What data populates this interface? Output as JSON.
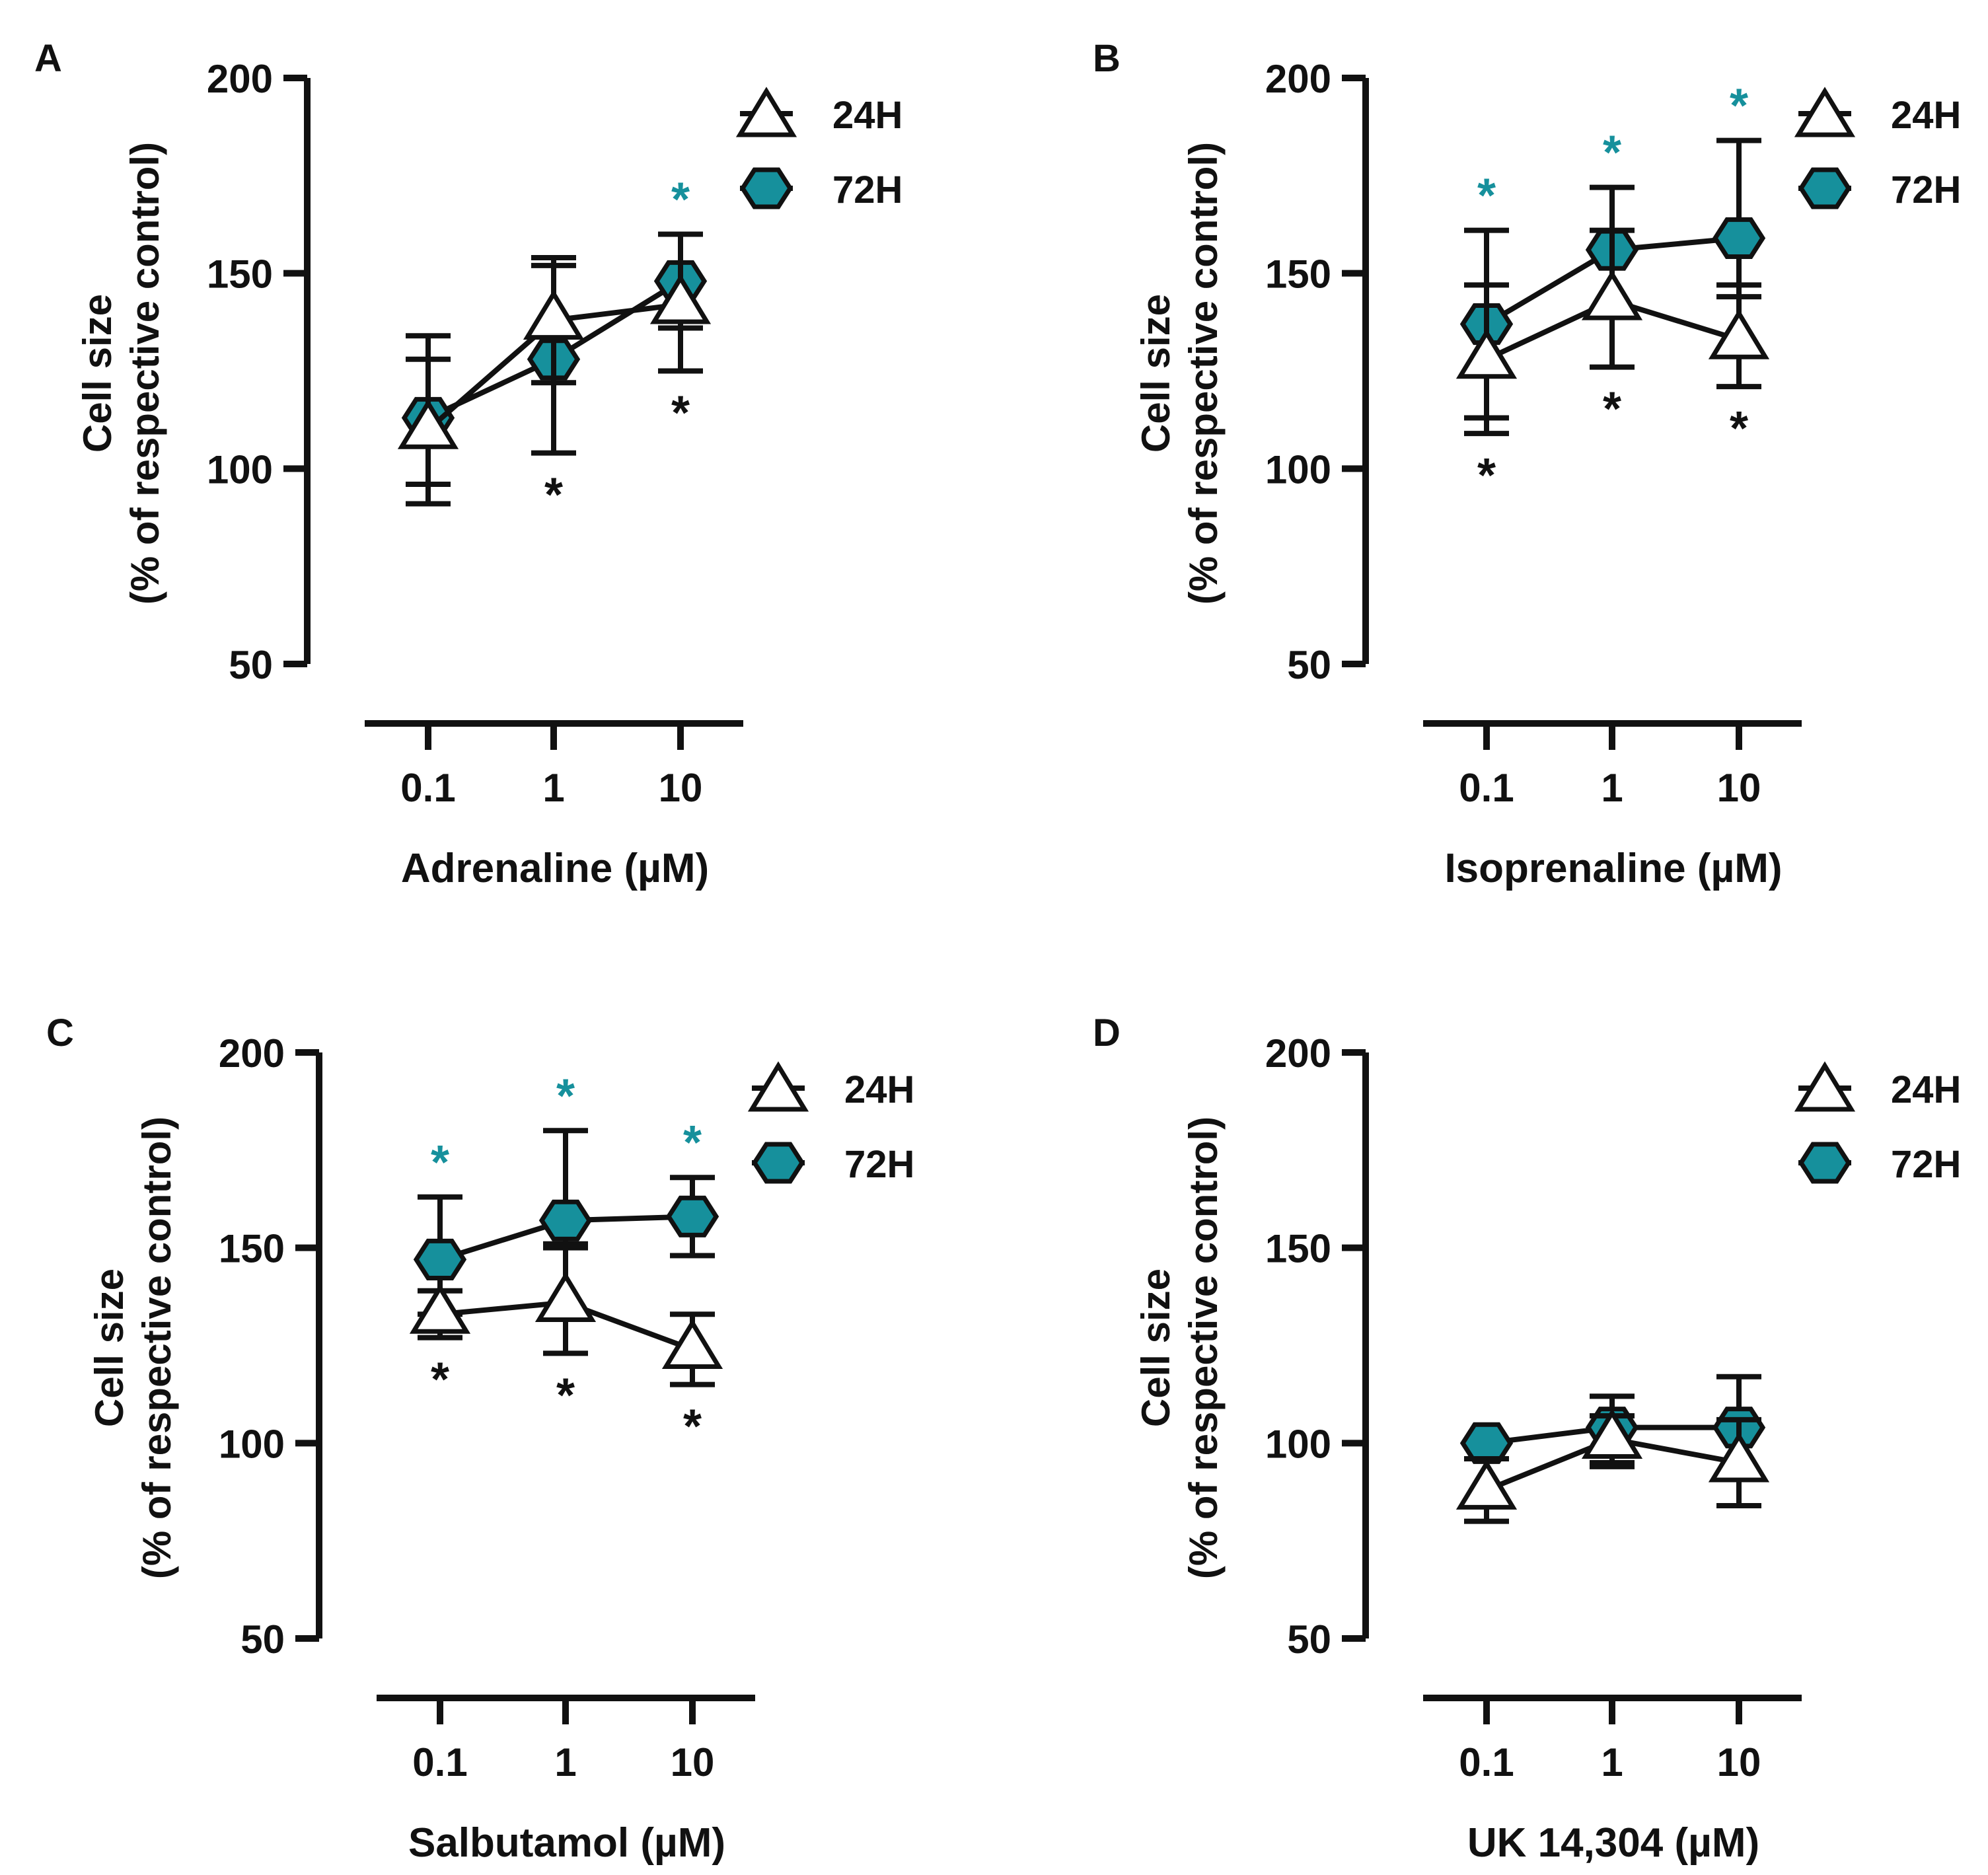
{
  "colors": {
    "ink": "#111111",
    "teal": "#16909c",
    "open_marker": "#ffffff"
  },
  "chart_data": [
    {
      "panel_label": "A",
      "type": "line",
      "xlabel": "Adrenaline (µM)",
      "ylabel_line1": "Cell size",
      "ylabel_line2": "(% of respective control)",
      "categories": [
        "0.1",
        "1",
        "10"
      ],
      "ylim": [
        50,
        200
      ],
      "yticks": [
        "50",
        "100",
        "150",
        "200"
      ],
      "series": [
        {
          "name": "24H",
          "marker": "triangle-open",
          "values": [
            110,
            138,
            142
          ],
          "err_low": [
            91,
            104,
            125
          ],
          "err_high": [
            128,
            152,
            160
          ]
        },
        {
          "name": "72H",
          "marker": "hexagon-filled",
          "values": [
            113,
            128,
            148
          ],
          "err_low": [
            96,
            122,
            136
          ],
          "err_high": [
            134,
            154,
            160
          ]
        }
      ],
      "significance": [
        {
          "series": "24H",
          "category_index": 1,
          "label": "*"
        },
        {
          "series": "24H",
          "category_index": 2,
          "label": "*"
        },
        {
          "series": "72H",
          "category_index": 2,
          "label": "*"
        }
      ]
    },
    {
      "panel_label": "B",
      "type": "line",
      "xlabel": "Isoprenaline (µM)",
      "ylabel_line1": "Cell size",
      "ylabel_line2": "(% of respective control)",
      "categories": [
        "0.1",
        "1",
        "10"
      ],
      "ylim": [
        50,
        200
      ],
      "yticks": [
        "50",
        "100",
        "150",
        "200"
      ],
      "series": [
        {
          "name": "24H",
          "marker": "triangle-open",
          "values": [
            128,
            143,
            133
          ],
          "err_low": [
            109,
            126,
            121
          ],
          "err_high": [
            147,
            161,
            147
          ]
        },
        {
          "name": "72H",
          "marker": "hexagon-filled",
          "values": [
            137,
            156,
            159
          ],
          "err_low": [
            113,
            140,
            144
          ],
          "err_high": [
            161,
            172,
            184
          ]
        }
      ],
      "significance": [
        {
          "series": "24H",
          "category_index": 0,
          "label": "*"
        },
        {
          "series": "24H",
          "category_index": 1,
          "label": "*"
        },
        {
          "series": "24H",
          "category_index": 2,
          "label": "*"
        },
        {
          "series": "72H",
          "category_index": 0,
          "label": "*"
        },
        {
          "series": "72H",
          "category_index": 1,
          "label": "*"
        },
        {
          "series": "72H",
          "category_index": 2,
          "label": "*"
        }
      ]
    },
    {
      "panel_label": "C",
      "type": "line",
      "xlabel": "Salbutamol (µM)",
      "ylabel_line1": "Cell size",
      "ylabel_line2": "(% of respective control)",
      "categories": [
        "0.1",
        "1",
        "10"
      ],
      "ylim": [
        50,
        200
      ],
      "yticks": [
        "50",
        "100",
        "150",
        "200"
      ],
      "series": [
        {
          "name": "24H",
          "marker": "triangle-open",
          "values": [
            133,
            136,
            124
          ],
          "err_low": [
            127,
            123,
            115
          ],
          "err_high": [
            139,
            150,
            133
          ]
        },
        {
          "name": "72H",
          "marker": "hexagon-filled",
          "values": [
            147,
            157,
            158
          ],
          "err_low": [
            133,
            151,
            148
          ],
          "err_high": [
            163,
            180,
            168
          ]
        }
      ],
      "significance": [
        {
          "series": "24H",
          "category_index": 0,
          "label": "*"
        },
        {
          "series": "24H",
          "category_index": 1,
          "label": "*"
        },
        {
          "series": "24H",
          "category_index": 2,
          "label": "*"
        },
        {
          "series": "72H",
          "category_index": 0,
          "label": "*"
        },
        {
          "series": "72H",
          "category_index": 1,
          "label": "*"
        },
        {
          "series": "72H",
          "category_index": 2,
          "label": "*"
        }
      ]
    },
    {
      "panel_label": "D",
      "type": "line",
      "xlabel": "UK 14,304 (µM)",
      "ylabel_line1": "Cell size",
      "ylabel_line2": "(% of respective control)",
      "categories": [
        "0.1",
        "1",
        "10"
      ],
      "ylim": [
        50,
        200
      ],
      "yticks": [
        "50",
        "100",
        "150",
        "200"
      ],
      "series": [
        {
          "name": "24H",
          "marker": "triangle-open",
          "values": [
            88,
            101,
            95
          ],
          "err_low": [
            80,
            95,
            84
          ],
          "err_high": [
            96,
            107,
            106
          ]
        },
        {
          "name": "72H",
          "marker": "hexagon-filled",
          "values": [
            100,
            104,
            104
          ],
          "err_low": [
            100,
            94,
            92
          ],
          "err_high": [
            100,
            112,
            117
          ]
        }
      ],
      "significance": []
    }
  ]
}
